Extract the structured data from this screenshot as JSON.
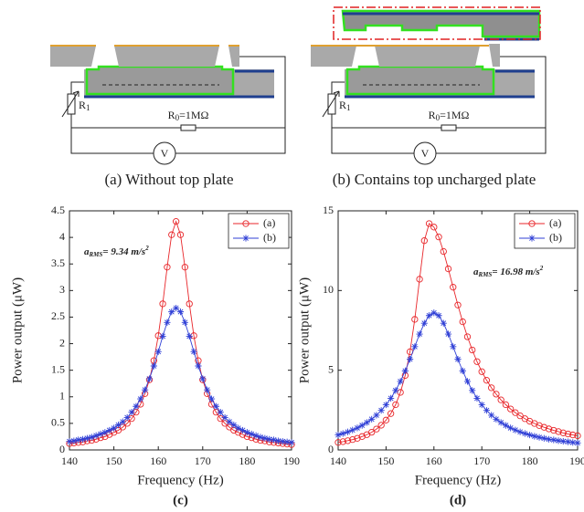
{
  "diagram_a": {
    "r1": {
      "base": "R",
      "sub": "1"
    },
    "r0": {
      "base": "R",
      "sub": "0",
      "rest": "=1MΩ"
    },
    "meter": "V",
    "caption": "(a) Without top plate"
  },
  "diagram_b": {
    "r1": {
      "base": "R",
      "sub": "1"
    },
    "r0": {
      "base": "R",
      "sub": "0",
      "rest": "=1MΩ"
    },
    "meter": "V",
    "caption": "(b) Contains top uncharged plate"
  },
  "chart_data": [
    {
      "type": "line",
      "caption": "(c)",
      "x_label": "Frequency (Hz)",
      "y_label": "Power output (μW)",
      "annotation": {
        "base": "a",
        "sub": "RMS",
        "rest": "= 9.34 m/s",
        "sup": "2"
      },
      "x": [
        140,
        141,
        142,
        143,
        144,
        145,
        146,
        147,
        148,
        149,
        150,
        151,
        152,
        153,
        154,
        155,
        156,
        157,
        158,
        159,
        160,
        161,
        162,
        163,
        164,
        165,
        166,
        167,
        168,
        169,
        170,
        171,
        172,
        173,
        174,
        175,
        176,
        177,
        178,
        179,
        180,
        181,
        182,
        183,
        184,
        185,
        186,
        187,
        188,
        189,
        190
      ],
      "xlim": [
        140,
        190
      ],
      "xticks": [
        140,
        150,
        160,
        170,
        180,
        190
      ],
      "ylim": [
        0,
        4.5
      ],
      "yticks": [
        0,
        0.5,
        1,
        1.5,
        2,
        2.5,
        3,
        3.5,
        4,
        4.5
      ],
      "legend": "upper right",
      "series": [
        {
          "name": "(a)",
          "color": "#e8262a",
          "marker": "circle",
          "values": [
            0.12,
            0.13,
            0.14,
            0.15,
            0.17,
            0.18,
            0.2,
            0.23,
            0.25,
            0.29,
            0.33,
            0.37,
            0.43,
            0.5,
            0.59,
            0.71,
            0.86,
            1.06,
            1.32,
            1.68,
            2.15,
            2.75,
            3.44,
            4.05,
            4.3,
            4.05,
            3.44,
            2.75,
            2.15,
            1.68,
            1.32,
            1.06,
            0.86,
            0.71,
            0.59,
            0.5,
            0.43,
            0.37,
            0.33,
            0.29,
            0.25,
            0.23,
            0.2,
            0.18,
            0.17,
            0.15,
            0.14,
            0.13,
            0.12,
            0.11,
            0.1
          ]
        },
        {
          "name": "(b)",
          "color": "#2f3fd6",
          "marker": "asterisk",
          "values": [
            0.16,
            0.17,
            0.19,
            0.2,
            0.22,
            0.24,
            0.27,
            0.3,
            0.33,
            0.37,
            0.41,
            0.47,
            0.53,
            0.61,
            0.71,
            0.82,
            0.96,
            1.13,
            1.34,
            1.58,
            1.85,
            2.14,
            2.4,
            2.6,
            2.67,
            2.6,
            2.4,
            2.14,
            1.85,
            1.58,
            1.34,
            1.13,
            0.96,
            0.82,
            0.71,
            0.61,
            0.53,
            0.47,
            0.41,
            0.37,
            0.33,
            0.3,
            0.27,
            0.24,
            0.22,
            0.2,
            0.19,
            0.17,
            0.16,
            0.15,
            0.14
          ]
        }
      ]
    },
    {
      "type": "line",
      "caption": "(d)",
      "x_label": "Frequency (Hz)",
      "y_label": "Power output (μW)",
      "annotation": {
        "base": "a",
        "sub": "RMS",
        "rest": "= 16.98 m/s",
        "sup": "2"
      },
      "x": [
        140,
        141,
        142,
        143,
        144,
        145,
        146,
        147,
        148,
        149,
        150,
        151,
        152,
        153,
        154,
        155,
        156,
        157,
        158,
        159,
        160,
        161,
        162,
        163,
        164,
        165,
        166,
        167,
        168,
        169,
        170,
        171,
        172,
        173,
        174,
        175,
        176,
        177,
        178,
        179,
        180,
        181,
        182,
        183,
        184,
        185,
        186,
        187,
        188,
        189,
        190
      ],
      "xlim": [
        140,
        190
      ],
      "xticks": [
        140,
        150,
        160,
        170,
        180,
        190
      ],
      "ylim": [
        0,
        15
      ],
      "yticks": [
        0,
        5,
        10,
        15
      ],
      "legend": "upper right",
      "series": [
        {
          "name": "(a)",
          "color": "#e8262a",
          "marker": "circle",
          "values": [
            0.47,
            0.52,
            0.58,
            0.65,
            0.73,
            0.84,
            0.96,
            1.11,
            1.31,
            1.55,
            1.87,
            2.28,
            2.84,
            3.61,
            4.67,
            6.16,
            8.19,
            10.71,
            13.13,
            14.2,
            13.98,
            13.36,
            12.45,
            11.36,
            10.21,
            9.09,
            8.04,
            7.1,
            6.27,
            5.54,
            4.91,
            4.37,
            3.9,
            3.5,
            3.14,
            2.84,
            2.57,
            2.34,
            2.14,
            1.96,
            1.8,
            1.66,
            1.53,
            1.42,
            1.32,
            1.23,
            1.15,
            1.07,
            1.0,
            0.94,
            0.89
          ]
        },
        {
          "name": "(b)",
          "color": "#2f3fd6",
          "marker": "asterisk",
          "values": [
            0.94,
            1.03,
            1.13,
            1.25,
            1.38,
            1.54,
            1.72,
            1.93,
            2.18,
            2.48,
            2.83,
            3.24,
            3.73,
            4.3,
            4.96,
            5.69,
            6.48,
            7.27,
            7.95,
            8.43,
            8.6,
            8.43,
            7.95,
            7.27,
            6.48,
            5.69,
            4.96,
            4.3,
            3.73,
            3.24,
            2.83,
            2.48,
            2.18,
            1.93,
            1.72,
            1.54,
            1.38,
            1.25,
            1.13,
            1.03,
            0.94,
            0.86,
            0.79,
            0.73,
            0.67,
            0.63,
            0.58,
            0.54,
            0.51,
            0.47,
            0.44
          ]
        }
      ]
    }
  ]
}
